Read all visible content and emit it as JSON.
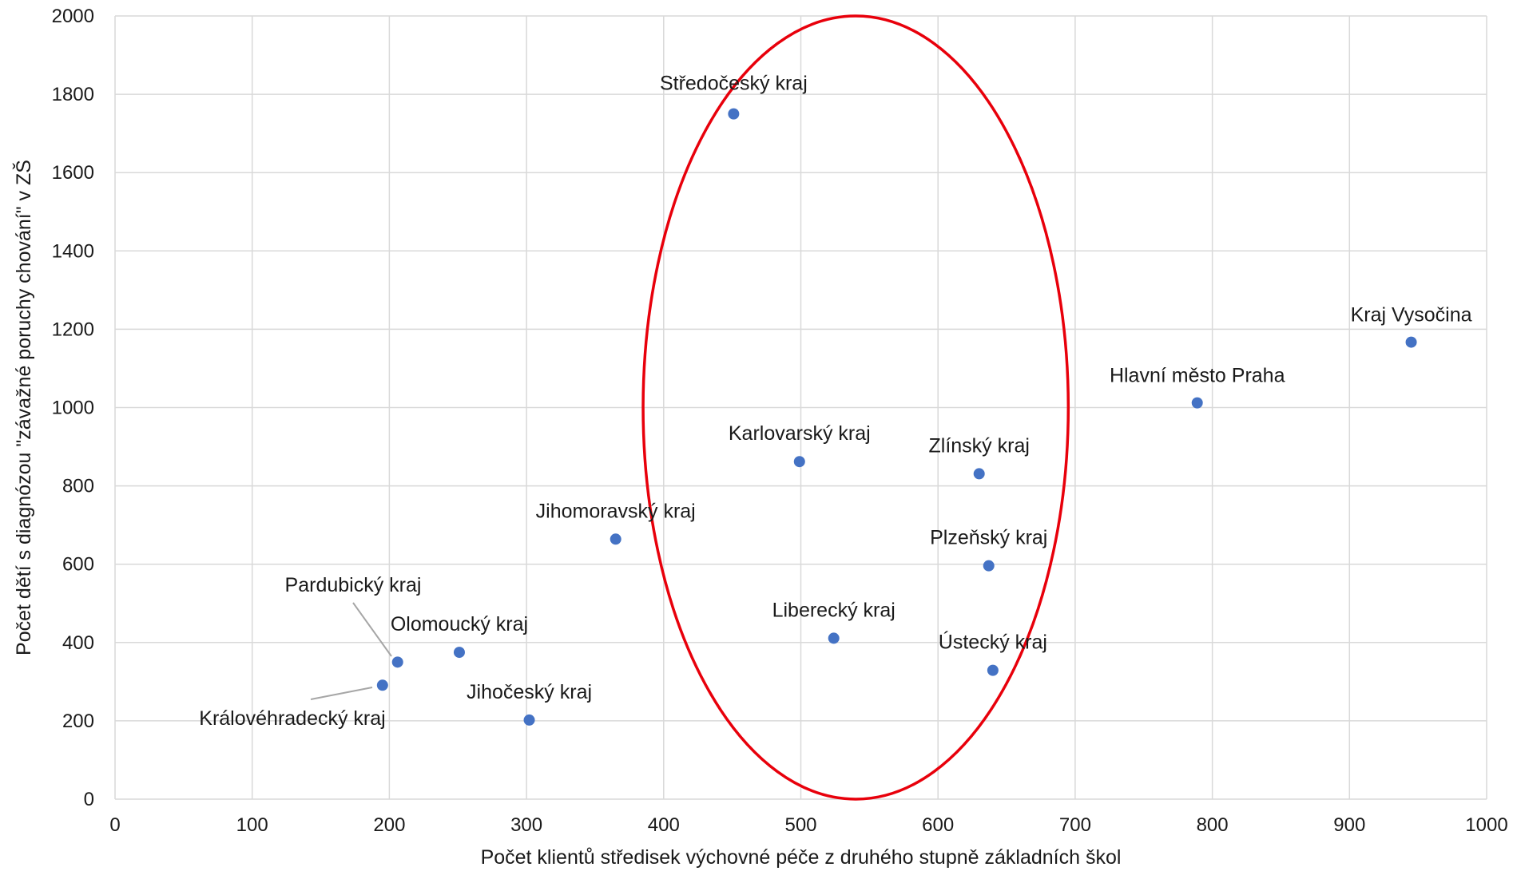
{
  "chart_data": {
    "type": "scatter",
    "title": "",
    "xlabel": "Počet klientů středisek výchovné péče z druhého stupně základních škol",
    "ylabel": "Počet dětí s diagnózou \"závažné poruchy chování\" v ZŠ",
    "xlim": [
      0,
      1000
    ],
    "ylim": [
      0,
      2000
    ],
    "x_ticks": [
      0,
      100,
      200,
      300,
      400,
      500,
      600,
      700,
      800,
      900,
      1000
    ],
    "y_ticks": [
      0,
      200,
      400,
      600,
      800,
      1000,
      1200,
      1400,
      1600,
      1800,
      2000
    ],
    "grid": true,
    "legend": "none",
    "marker_color": "#4472C4",
    "gridline_color": "#d9d9d9",
    "points": [
      {
        "label": "Středočeský kraj",
        "x": 451,
        "y": 1750
      },
      {
        "label": "Kraj Vysočina",
        "x": 945,
        "y": 1167
      },
      {
        "label": "Hlavní město Praha",
        "x": 789,
        "y": 1012
      },
      {
        "label": "Karlovarský kraj",
        "x": 499,
        "y": 862
      },
      {
        "label": "Zlínský kraj",
        "x": 630,
        "y": 831
      },
      {
        "label": "Jihomoravský kraj",
        "x": 365,
        "y": 664
      },
      {
        "label": "Plzeňský kraj",
        "x": 637,
        "y": 596
      },
      {
        "label": "Liberecký kraj",
        "x": 524,
        "y": 411
      },
      {
        "label": "Olomoucký kraj",
        "x": 251,
        "y": 375
      },
      {
        "label": "Pardubický kraj",
        "x": 206,
        "y": 350
      },
      {
        "label": "Ústecký kraj",
        "x": 640,
        "y": 329
      },
      {
        "label": "Královéhradecký kraj",
        "x": 195,
        "y": 291
      },
      {
        "label": "Jihočeský kraj",
        "x": 302,
        "y": 202
      }
    ],
    "annotation": {
      "shape": "ellipse",
      "color": "#e8000b",
      "center_x": 540,
      "center_y": 1000,
      "radius_x": 155,
      "radius_y": 1000
    }
  }
}
